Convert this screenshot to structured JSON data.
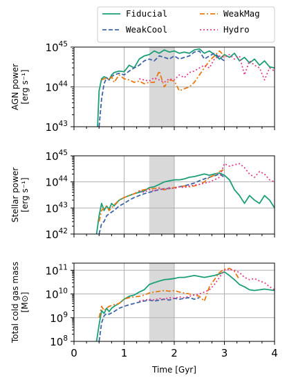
{
  "chart_data": {
    "type": "line",
    "xlabel": "Time [Gyr]",
    "xlim": [
      0,
      4
    ],
    "x_ticks": [
      "0",
      "1",
      "2",
      "3",
      "4"
    ],
    "shaded_interval": [
      1.5,
      2.0
    ],
    "grid": true,
    "legend": {
      "placement": "top",
      "entries": [
        "Fiducial",
        "WeakCool",
        "WeakMag",
        "Hydro"
      ]
    },
    "series_styles": [
      {
        "name": "Fiducial",
        "color": "#1a9e77",
        "dash": "solid"
      },
      {
        "name": "WeakCool",
        "color": "#3e64a8",
        "dash": "dashed"
      },
      {
        "name": "WeakMag",
        "color": "#e8770f",
        "dash": "dashdot"
      },
      {
        "name": "Hydro",
        "color": "#e7388a",
        "dash": "dotted"
      }
    ],
    "panels": [
      {
        "ylabel_line1": "AGN power",
        "ylabel_line2": "[erg s⁻¹]",
        "yscale": "log",
        "ylim": [
          1e+43,
          1e+45
        ],
        "y_ticks": [
          {
            "base": "10",
            "exp": "43"
          },
          {
            "base": "10",
            "exp": "44"
          },
          {
            "base": "10",
            "exp": "45"
          }
        ],
        "series": [
          {
            "name": "Fiducial",
            "x": [
              0.47,
              0.5,
              0.55,
              0.6,
              0.65,
              0.7,
              0.75,
              0.8,
              0.9,
              1.0,
              1.1,
              1.2,
              1.3,
              1.4,
              1.5,
              1.6,
              1.7,
              1.8,
              1.9,
              2.0,
              2.1,
              2.2,
              2.3,
              2.4,
              2.5,
              2.6,
              2.7,
              2.8,
              2.9,
              3.0,
              3.1,
              3.2,
              3.3,
              3.4,
              3.5,
              3.6,
              3.7,
              3.8,
              3.9,
              4.0
            ],
            "y": [
              1e+43,
              8e+43,
              1.6e+44,
              1.8e+44,
              1.7e+44,
              1.5e+44,
              2e+44,
              2.3e+44,
              2.5e+44,
              2.4e+44,
              3.5e+44,
              3e+44,
              5e+44,
              6e+44,
              6.5e+44,
              8e+44,
              7e+44,
              8.5e+44,
              7.5e+44,
              8e+44,
              7e+44,
              7.5e+44,
              7e+44,
              8.5e+44,
              9e+44,
              7e+44,
              8e+44,
              6.5e+44,
              5e+44,
              6.5e+44,
              5.5e+44,
              7e+44,
              4.5e+44,
              5.5e+44,
              4e+44,
              5e+44,
              3.5e+44,
              4.5e+44,
              3.2e+44,
              3e+44
            ]
          },
          {
            "name": "WeakCool",
            "x": [
              0.5,
              0.55,
              0.6,
              0.65,
              0.7,
              0.75,
              0.8,
              0.9,
              1.0,
              1.1,
              1.2,
              1.3,
              1.4,
              1.5,
              1.6,
              1.7,
              1.8,
              1.9,
              2.0,
              2.1,
              2.2,
              2.3,
              2.4,
              2.5,
              2.6,
              2.7,
              2.8,
              2.9,
              3.0
            ],
            "y": [
              1e+43,
              5e+43,
              1.2e+44,
              1.7e+44,
              1.5e+44,
              1.8e+44,
              2e+44,
              2.2e+44,
              2e+44,
              2.5e+44,
              3e+44,
              3.5e+44,
              4.5e+44,
              5e+44,
              4.5e+44,
              6e+44,
              5.5e+44,
              5e+44,
              6e+44,
              5e+44,
              5.5e+44,
              6e+44,
              7.5e+44,
              8e+44,
              5e+44,
              6e+44,
              7e+44,
              5.5e+44,
              4.5e+44
            ]
          },
          {
            "name": "WeakMag",
            "x": [
              0.55,
              0.6,
              0.65,
              0.7,
              0.75,
              0.8,
              0.9,
              1.0,
              1.1,
              1.2,
              1.3,
              1.4,
              1.5,
              1.6,
              1.7,
              1.8,
              1.9,
              2.0,
              2.1,
              2.2,
              2.3,
              2.4,
              2.5,
              2.6,
              2.7,
              2.8,
              2.9,
              3.0
            ],
            "y": [
              1.5e+44,
              1.6e+44,
              1.7e+44,
              1.5e+44,
              1.8e+44,
              1.3e+44,
              2e+44,
              1.6e+44,
              1.5e+44,
              1.3e+44,
              1.4e+44,
              1.2e+44,
              1.3e+44,
              1.3e+44,
              2.5e+44,
              1e+44,
              1.5e+44,
              1.4e+44,
              8e+43,
              9e+43,
              1e+44,
              1.3e+44,
              2e+44,
              3e+44,
              4.5e+44,
              6e+44,
              8e+44,
              6e+44
            ]
          },
          {
            "name": "Hydro",
            "x": [
              1.3,
              1.4,
              1.5,
              1.6,
              1.7,
              1.8,
              1.9,
              2.0,
              2.1,
              2.2,
              2.3,
              2.4,
              2.5,
              2.6,
              2.7,
              2.8,
              2.9,
              3.0,
              3.1,
              3.2,
              3.3,
              3.4,
              3.5,
              3.6,
              3.7,
              3.8,
              3.9,
              4.0
            ],
            "y": [
              1.6e+44,
              1.5e+44,
              1.4e+44,
              1.7e+44,
              1.5e+44,
              1.3e+44,
              1.6e+44,
              1.5e+44,
              2e+44,
              1.7e+44,
              2.3e+44,
              2.5e+44,
              3e+44,
              3.5e+44,
              3e+44,
              5e+44,
              6e+44,
              5.5e+44,
              6.5e+44,
              5e+44,
              6e+44,
              2e+44,
              4.5e+44,
              3.5e+44,
              3e+44,
              1.5e+44,
              3e+44,
              2.5e+44
            ]
          }
        ]
      },
      {
        "ylabel_line1": "Stellar power",
        "ylabel_line2": "[erg s⁻¹]",
        "yscale": "log",
        "ylim": [
          1e+42,
          1e+45
        ],
        "y_ticks": [
          {
            "base": "10",
            "exp": "42"
          },
          {
            "base": "10",
            "exp": "43"
          },
          {
            "base": "10",
            "exp": "44"
          },
          {
            "base": "10",
            "exp": "45"
          }
        ],
        "series": [
          {
            "name": "Fiducial",
            "x": [
              0.45,
              0.5,
              0.55,
              0.6,
              0.65,
              0.7,
              0.75,
              0.8,
              0.9,
              1.0,
              1.1,
              1.2,
              1.3,
              1.4,
              1.5,
              1.6,
              1.7,
              1.8,
              1.9,
              2.0,
              2.1,
              2.2,
              2.3,
              2.4,
              2.5,
              2.6,
              2.7,
              2.8,
              2.9,
              3.0,
              3.1,
              3.2,
              3.3,
              3.4,
              3.5,
              3.6,
              3.7,
              3.8,
              3.9,
              4.0
            ],
            "y": [
              1e+42,
              5e+42,
              1.5e+43,
              8e+42,
              1.2e+43,
              9e+42,
              1.5e+43,
              1.2e+43,
              2e+43,
              2.5e+43,
              3e+43,
              3.5e+43,
              4e+43,
              4.5e+43,
              6e+43,
              6.5e+43,
              8e+43,
              1e+44,
              1.1e+44,
              1.2e+44,
              1.2e+44,
              1.3e+44,
              1.5e+44,
              1.6e+44,
              1.8e+44,
              2e+44,
              1.8e+44,
              2e+44,
              2.2e+44,
              1.8e+44,
              1.2e+44,
              5e+43,
              3e+43,
              1.5e+43,
              3e+43,
              2e+43,
              1.5e+43,
              3e+43,
              2e+43,
              1e+43
            ]
          },
          {
            "name": "WeakCool",
            "x": [
              0.5,
              0.55,
              0.6,
              0.65,
              0.7,
              0.8,
              0.9,
              1.0,
              1.1,
              1.2,
              1.3,
              1.4,
              1.5,
              1.6,
              1.7,
              1.8,
              1.9,
              2.0,
              2.1,
              2.2,
              2.3,
              2.4,
              2.5,
              2.6,
              2.7,
              2.8,
              2.9,
              3.0
            ],
            "y": [
              1e+42,
              2.5e+42,
              3e+42,
              5e+42,
              6e+42,
              8e+42,
              1.2e+43,
              1.5e+43,
              2e+43,
              2.5e+43,
              3e+43,
              3.5e+43,
              4e+43,
              4.5e+43,
              5e+43,
              5.5e+43,
              5.5e+43,
              6e+43,
              6.5e+43,
              7e+43,
              8e+43,
              9e+43,
              1.1e+44,
              1.3e+44,
              1.5e+44,
              1.7e+44,
              2e+44,
              1.5e+44
            ]
          },
          {
            "name": "WeakMag",
            "x": [
              0.5,
              0.55,
              0.6,
              0.65,
              0.7,
              0.8,
              0.9,
              1.0,
              1.1,
              1.2,
              1.3,
              1.4,
              1.5,
              1.6,
              1.7,
              1.8,
              1.9,
              2.0,
              2.1,
              2.2,
              2.3,
              2.4,
              2.5,
              2.6,
              2.7,
              2.8,
              2.9,
              3.0
            ],
            "y": [
              3e+42,
              8e+42,
              1e+43,
              1.2e+43,
              8e+42,
              1.3e+43,
              2e+43,
              2.5e+43,
              3e+43,
              3.5e+43,
              4.5e+43,
              5e+43,
              5.5e+43,
              5.5e+43,
              6e+43,
              5e+43,
              5.5e+43,
              6e+43,
              6.5e+43,
              7e+43,
              6.5e+43,
              7e+43,
              8e+43,
              1e+44,
              1.5e+44,
              1.8e+44,
              2.5e+44,
              3e+44
            ]
          },
          {
            "name": "Hydro",
            "x": [
              1.3,
              1.4,
              1.5,
              1.6,
              1.7,
              1.8,
              1.9,
              2.0,
              2.1,
              2.2,
              2.3,
              2.4,
              2.5,
              2.6,
              2.7,
              2.8,
              2.9,
              3.0,
              3.1,
              3.2,
              3.3,
              3.4,
              3.5,
              3.6,
              3.7,
              3.8,
              3.9,
              4.0
            ],
            "y": [
              4.5e+43,
              4e+43,
              5e+43,
              4.5e+43,
              5.5e+43,
              5e+43,
              6e+43,
              5.5e+43,
              6.5e+43,
              6e+43,
              7e+43,
              7.5e+43,
              8e+43,
              9e+43,
              1e+44,
              1.2e+44,
              1.5e+44,
              5e+44,
              4e+44,
              4.5e+44,
              5e+44,
              3.5e+44,
              2e+44,
              1.5e+44,
              2.5e+44,
              2e+44,
              1.2e+44,
              1e+44
            ]
          }
        ]
      },
      {
        "ylabel_line1": "Total cold gas mass",
        "ylabel_line2": "[M⊙]",
        "yscale": "log",
        "ylim": [
          100000000.0,
          200000000000.0
        ],
        "y_ticks": [
          {
            "base": "10",
            "exp": "8"
          },
          {
            "base": "10",
            "exp": "9"
          },
          {
            "base": "10",
            "exp": "10"
          },
          {
            "base": "10",
            "exp": "11"
          }
        ],
        "series": [
          {
            "name": "Fiducial",
            "x": [
              0.45,
              0.5,
              0.55,
              0.6,
              0.65,
              0.7,
              0.75,
              0.8,
              0.9,
              1.0,
              1.1,
              1.2,
              1.3,
              1.4,
              1.5,
              1.6,
              1.7,
              1.8,
              1.9,
              2.0,
              2.1,
              2.2,
              2.3,
              2.4,
              2.5,
              2.6,
              2.7,
              2.8,
              2.9,
              3.0,
              3.1,
              3.2,
              3.3,
              3.4,
              3.5,
              3.6,
              3.7,
              3.8,
              3.9,
              4.0
            ],
            "y": [
              100000000.0,
              500000000.0,
              2000000000.0,
              1500000000.0,
              2500000000.0,
              1800000000.0,
              2500000000.0,
              3000000000.0,
              4000000000.0,
              6000000000.0,
              8000000000.0,
              9000000000.0,
              12000000000.0,
              15000000000.0,
              25000000000.0,
              30000000000.0,
              35000000000.0,
              40000000000.0,
              42000000000.0,
              45000000000.0,
              50000000000.0,
              50000000000.0,
              55000000000.0,
              60000000000.0,
              55000000000.0,
              50000000000.0,
              55000000000.0,
              60000000000.0,
              70000000000.0,
              85000000000.0,
              60000000000.0,
              40000000000.0,
              25000000000.0,
              20000000000.0,
              15000000000.0,
              14000000000.0,
              15000000000.0,
              16000000000.0,
              15000000000.0,
              14000000000.0
            ]
          },
          {
            "name": "WeakCool",
            "x": [
              0.5,
              0.55,
              0.6,
              0.65,
              0.7,
              0.8,
              0.9,
              1.0,
              1.1,
              1.2,
              1.3,
              1.4,
              1.5,
              1.6,
              1.7,
              1.8,
              1.9,
              2.0,
              2.1,
              2.2,
              2.3,
              2.4,
              2.5
            ],
            "y": [
              100000000.0,
              600000000.0,
              1200000000.0,
              1500000000.0,
              1400000000.0,
              1800000000.0,
              2500000000.0,
              3000000000.0,
              3500000000.0,
              4000000000.0,
              4500000000.0,
              5000000000.0,
              5500000000.0,
              5000000000.0,
              5500000000.0,
              6000000000.0,
              5500000000.0,
              6500000000.0,
              6000000000.0,
              6500000000.0,
              7000000000.0,
              6000000000.0,
              7000000000.0
            ]
          },
          {
            "name": "WeakMag",
            "x": [
              0.5,
              0.55,
              0.6,
              0.65,
              0.7,
              0.8,
              0.9,
              1.0,
              1.1,
              1.2,
              1.3,
              1.4,
              1.5,
              1.6,
              1.7,
              1.8,
              1.9,
              2.0,
              2.1,
              2.2,
              2.3,
              2.4,
              2.5,
              2.6,
              2.7,
              2.8,
              2.9,
              3.0,
              3.1,
              3.2,
              3.3
            ],
            "y": [
              1000000000.0,
              3000000000.0,
              2000000000.0,
              2500000000.0,
              3000000000.0,
              3500000000.0,
              4000000000.0,
              6000000000.0,
              7000000000.0,
              7500000000.0,
              8000000000.0,
              9000000000.0,
              11000000000.0,
              12000000000.0,
              13000000000.0,
              14000000000.0,
              13000000000.0,
              14000000000.0,
              12000000000.0,
              11000000000.0,
              10000000000.0,
              9000000000.0,
              8000000000.0,
              5000000000.0,
              20000000000.0,
              40000000000.0,
              80000000000.0,
              110000000000.0,
              120000000000.0,
              90000000000.0,
              40000000000.0
            ]
          },
          {
            "name": "Hydro",
            "x": [
              1.3,
              1.4,
              1.5,
              1.6,
              1.7,
              1.8,
              1.9,
              2.0,
              2.1,
              2.2,
              2.3,
              2.4,
              2.5,
              2.6,
              2.7,
              2.8,
              2.9,
              3.0,
              3.1,
              3.2,
              3.3,
              3.4,
              3.5,
              3.6,
              3.7,
              3.8,
              3.9,
              4.0
            ],
            "y": [
              5000000000.0,
              5500000000.0,
              6000000000.0,
              5500000000.0,
              6500000000.0,
              6000000000.0,
              7000000000.0,
              6500000000.0,
              7500000000.0,
              7000000000.0,
              8000000000.0,
              9000000000.0,
              10000000000.0,
              12000000000.0,
              15000000000.0,
              25000000000.0,
              50000000000.0,
              100000000000.0,
              110000000000.0,
              100000000000.0,
              80000000000.0,
              50000000000.0,
              40000000000.0,
              45000000000.0,
              35000000000.0,
              30000000000.0,
              20000000000.0,
              15000000000.0
            ]
          }
        ]
      }
    ]
  }
}
